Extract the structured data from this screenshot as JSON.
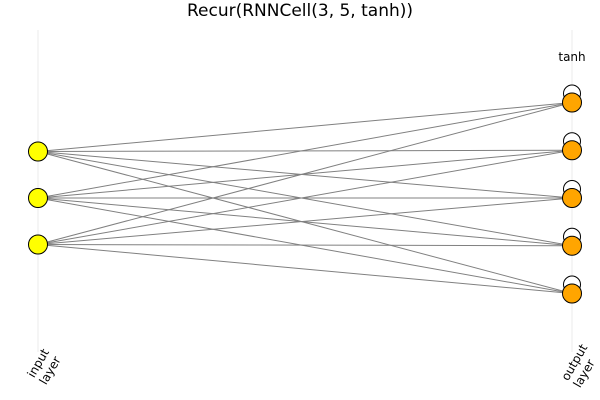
{
  "title": "Recur(RNNCell(3, 5, tanh))",
  "activation_label": "tanh",
  "input_layer": {
    "label_line1": "input",
    "label_line2": "layer",
    "node_count": 3,
    "node_color": "#ffff00"
  },
  "output_layer": {
    "label_line1": "output",
    "label_line2": "layer",
    "node_count": 5,
    "node_color": "#ffa500",
    "recurrent_loops": true
  },
  "connections": "fully-connected",
  "colors": {
    "edge": "#808080",
    "node_stroke": "#000000",
    "axis_line": "#ebebeb"
  }
}
